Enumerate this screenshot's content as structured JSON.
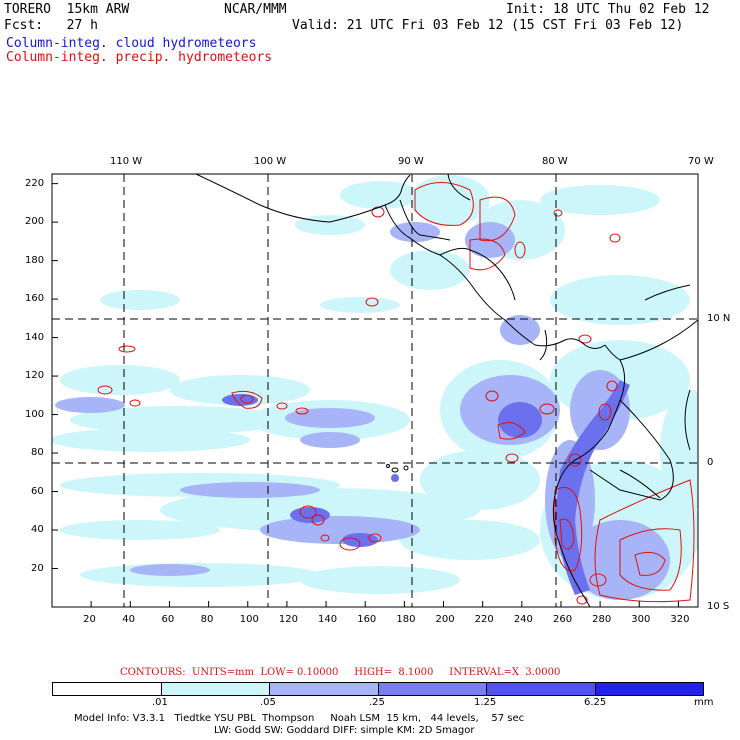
{
  "header": {
    "model": "TORERO  15km ARW",
    "fcst": "Fcst:   27 h",
    "center": "NCAR/MMM",
    "init": "Init: 18 UTC Thu 02 Feb 12",
    "valid": "Valid: 21 UTC Fri 03 Feb 12 (15 CST Fri 03 Feb 12)",
    "field1": "Column-integ. cloud hydrometeors",
    "field2": "Column-integ. precip. hydrometeors"
  },
  "axes": {
    "x_ticks": [
      "20",
      "40",
      "60",
      "80",
      "100",
      "120",
      "140",
      "160",
      "180",
      "200",
      "220",
      "240",
      "260",
      "280",
      "300",
      "320"
    ],
    "y_ticks": [
      "20",
      "40",
      "60",
      "80",
      "100",
      "120",
      "140",
      "160",
      "180",
      "200",
      "220"
    ],
    "lon_labels": [
      "110 W",
      "100 W",
      "90 W",
      "80 W",
      "70 W"
    ],
    "lat_labels": [
      "10 N",
      "0",
      "10 S"
    ]
  },
  "contour_info": {
    "label": "CONTOURS:  UNITS=mm  LOW= 0.10000     HIGH=  8.1000     INTERVAL=X  3.0000"
  },
  "legend": {
    "levels": [
      ".01",
      ".05",
      ".25",
      "1.25",
      "6.25"
    ],
    "unit": "mm",
    "colors": [
      "#ffffff",
      "#cdf6fb",
      "#a8b4f8",
      "#7b7ef2",
      "#5252ee",
      "#2222e6"
    ]
  },
  "footer": {
    "line1": "Model Info: V3.3.1   Tiedtke YSU PBL  Thompson     Noah LSM  15 km,   44 levels,    57 sec",
    "line2": "LW: Godd SW: Goddard DIFF: simple KM: 2D Smagor"
  }
}
